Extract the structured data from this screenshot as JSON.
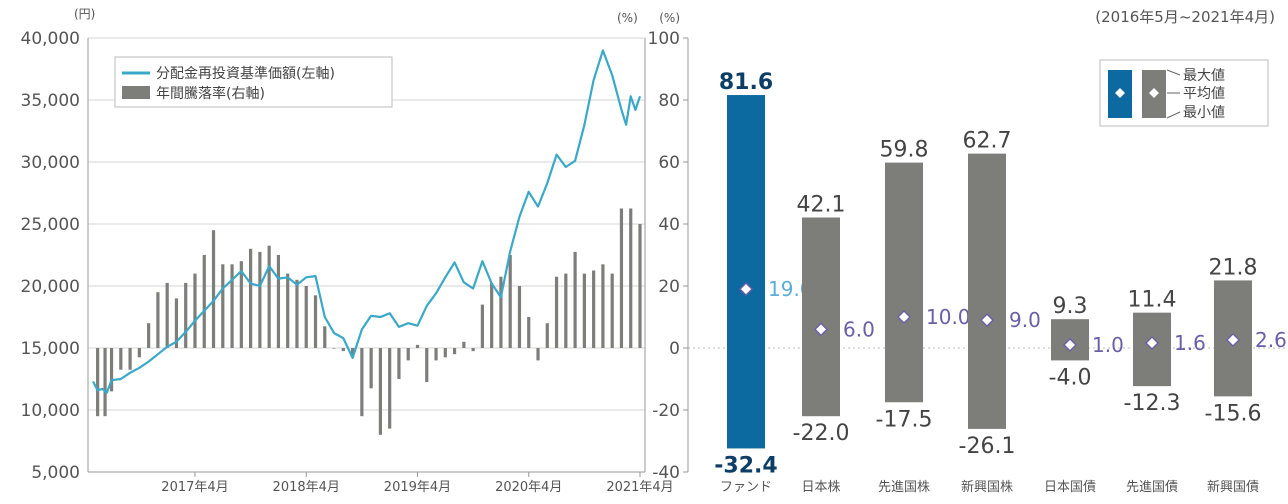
{
  "period_note": "(2016年5月~2021年4月)",
  "chart_data": [
    {
      "type": "line+bar",
      "left_unit": "(円)",
      "right_unit": "(%)",
      "left_ylim": [
        5000,
        40000
      ],
      "left_yticks": [
        "5,000",
        "10,000",
        "15,000",
        "20,000",
        "25,000",
        "30,000",
        "35,000",
        "40,000"
      ],
      "left_ytick_values": [
        5000,
        10000,
        15000,
        20000,
        25000,
        30000,
        35000,
        40000
      ],
      "right_ylim": [
        -40,
        100
      ],
      "right_yticks": [
        "-40",
        "-20",
        "0",
        "20",
        "40",
        "60",
        "80",
        "100"
      ],
      "right_ytick_values": [
        -40,
        -20,
        0,
        20,
        40,
        60,
        80,
        100
      ],
      "x_tick_labels": [
        "2017年4月",
        "2018年4月",
        "2019年4月",
        "2020年4月",
        "2021年4月"
      ],
      "x_tick_months": [
        11,
        23,
        35,
        47,
        59
      ],
      "legend": [
        "分配金再投資基準価額(左軸)",
        "年間騰落率(右軸)"
      ],
      "colors": {
        "line": "#3aa8c8",
        "bar": "#7d7d7a"
      },
      "line_series": {
        "name": "分配金再投資基準価額(左軸)",
        "months": [
          0,
          0.5,
          1,
          1.5,
          2,
          3,
          4,
          5,
          6,
          7,
          8,
          9,
          10,
          11,
          12,
          13,
          14,
          15,
          16,
          17,
          18,
          19,
          20,
          21,
          22,
          23,
          24,
          25,
          26,
          27,
          28,
          29,
          30,
          31,
          32,
          33,
          34,
          35,
          36,
          37,
          38,
          39,
          40,
          41,
          42,
          43,
          44,
          45,
          46,
          47,
          48,
          49,
          50,
          51,
          52,
          53,
          54,
          55,
          56,
          57,
          57.5,
          58,
          58.5,
          59
        ],
        "values": [
          12300,
          11600,
          11700,
          11400,
          12400,
          12500,
          13000,
          13400,
          13900,
          14500,
          15100,
          15500,
          16300,
          17200,
          18000,
          18800,
          19800,
          20500,
          21200,
          20200,
          20000,
          21600,
          20600,
          20700,
          20100,
          20700,
          20800,
          17500,
          16200,
          15800,
          14200,
          16500,
          17600,
          17500,
          17800,
          16700,
          17000,
          16800,
          18400,
          19400,
          20700,
          21900,
          20300,
          19800,
          22000,
          20200,
          19100,
          22800,
          25600,
          27600,
          26400,
          28300,
          30600,
          29600,
          30100,
          33000,
          36600,
          39000,
          37000,
          34200,
          33000,
          35300,
          34200,
          35300
        ]
      },
      "bar_series": {
        "name": "年間騰落率(右軸)",
        "months": [
          0.5,
          1.3,
          2,
          3,
          4,
          5,
          6,
          7,
          8,
          9,
          10,
          11,
          12,
          13,
          14,
          15,
          16,
          17,
          18,
          19,
          20,
          21,
          22,
          23,
          24,
          25,
          26,
          27,
          28,
          29,
          30,
          31,
          32,
          33,
          34,
          35,
          36,
          37,
          38,
          39,
          40,
          41,
          42,
          43,
          44,
          45,
          46,
          47,
          48,
          49,
          50,
          51,
          52,
          53,
          54,
          55,
          56,
          57,
          58,
          59
        ],
        "values": [
          -22,
          -22,
          -14,
          -7,
          -7,
          -3,
          8,
          18,
          21,
          16,
          21,
          24,
          30,
          38,
          27,
          27,
          28,
          32,
          31,
          33,
          30,
          24,
          22,
          20,
          17,
          7,
          0,
          -1,
          -3,
          -22,
          -13,
          -28,
          -26,
          -10,
          -4,
          1,
          -11,
          -4,
          -3,
          -2,
          2,
          -1,
          14,
          21,
          23,
          30,
          20,
          10,
          -4,
          8,
          23,
          24,
          31,
          24,
          25,
          27,
          24,
          45,
          45,
          40
        ]
      }
    },
    {
      "type": "range_bar",
      "ylim": [
        -40,
        100
      ],
      "categories": [
        "ファンド",
        "日本株",
        "先進国株",
        "新興国株",
        "日本国債",
        "先進国債",
        "新興国債"
      ],
      "max": [
        81.6,
        42.1,
        59.8,
        62.7,
        9.3,
        11.4,
        21.8
      ],
      "avg": [
        19.0,
        6.0,
        10.0,
        9.0,
        1.0,
        1.6,
        2.6
      ],
      "min": [
        -32.4,
        -22.0,
        -17.5,
        -26.1,
        -4.0,
        -12.3,
        -15.6
      ],
      "max_labels": [
        "81.6",
        "42.1",
        "59.8",
        "62.7",
        "9.3",
        "11.4",
        "21.8"
      ],
      "avg_labels": [
        "19.0",
        "6.0",
        "10.0",
        "9.0",
        "1.0",
        "1.6",
        "2.6"
      ],
      "min_labels": [
        "-32.4",
        "-22.0",
        "-17.5",
        "-26.1",
        "-4.0",
        "-12.3",
        "-15.6"
      ],
      "colors": {
        "fund": "#0d6aa0",
        "others": "#7d7d7a",
        "avg_fund_label": "#59aed6",
        "avg_label": "#6b5ea8"
      },
      "legend": [
        "最大値",
        "平均値",
        "最小値"
      ]
    }
  ]
}
